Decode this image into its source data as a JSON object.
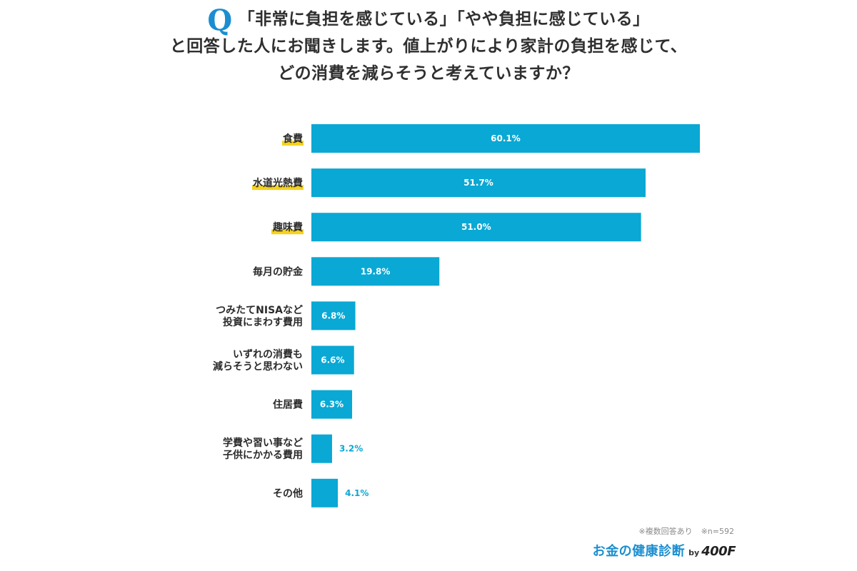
{
  "header": {
    "q_mark": "Q",
    "line1": "「非常に負担を感じている」「やや負担に感じている」",
    "line2": "と回答した人にお聞きします。値上がりにより家計の負担を感じて、",
    "line3": "どの消費を減らそうと考えていますか？"
  },
  "chart_data": {
    "type": "bar",
    "orientation": "horizontal",
    "categories": [
      [
        "食費"
      ],
      [
        "水道光熱費"
      ],
      [
        "趣味費"
      ],
      [
        "毎月の貯金"
      ],
      [
        "つみたてNISAなど",
        "投資にまわす費用"
      ],
      [
        "いずれの消費も",
        "減らそうと思わない"
      ],
      [
        "住居費"
      ],
      [
        "学費や習い事など",
        "子供にかかる費用"
      ],
      [
        "その他"
      ]
    ],
    "values": [
      60.1,
      51.7,
      51.0,
      19.8,
      6.8,
      6.6,
      6.3,
      3.2,
      4.1
    ],
    "value_labels": [
      "60.1%",
      "51.7%",
      "51.0%",
      "19.8%",
      "6.8%",
      "6.6%",
      "6.3%",
      "3.2%",
      "4.1%"
    ],
    "highlighted": [
      true,
      true,
      true,
      false,
      false,
      false,
      false,
      false,
      false
    ],
    "xlim": [
      0,
      60.1
    ],
    "bar_color": "#0aa8d4",
    "highlight_color": "#f5d21f",
    "label_inside_color": "#ffffff",
    "label_outside_color": "#0aa8d4",
    "grid": false
  },
  "footnotes": {
    "multiple": "※複数回答あり",
    "n": "※n=592"
  },
  "logo": {
    "brand": "お金の健康診断",
    "by": "by",
    "firm": "400F"
  }
}
